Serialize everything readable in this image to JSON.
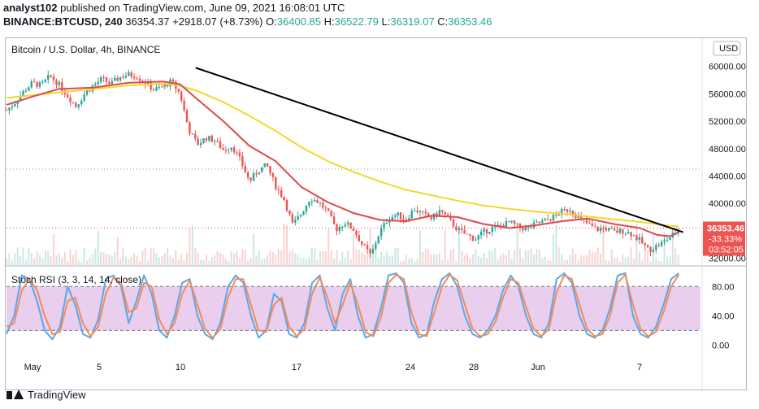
{
  "header": {
    "line1_user": "analyst102",
    "line1_rest": " published on TradingView.com, June 09, 2021 16:08:01 UTC",
    "symbol": "BINANCE:BTCUSD, 240",
    "last": "36354.37",
    "change": "+2918.07 (+8.73%)",
    "o_label": "O:",
    "o_value": "36400.85",
    "h_label": "H:",
    "h_value": "36522.79",
    "l_label": "L:",
    "l_value": "36319.07",
    "c_label": "C:",
    "c_value": "36353.46"
  },
  "colors": {
    "up": "#26a69a",
    "down": "#ef5350",
    "ema_fast": "#e04848",
    "ema_slow": "#f2d82c",
    "rsi_k": "#5ba7e8",
    "rsi_d": "#f28c5a",
    "rsi_band": "#e1bee7",
    "trendline": "#000000",
    "price_label_bg": "#ef5350"
  },
  "chart_data": {
    "type": "candlestick",
    "title": "Bitcoin / U.S. Dollar, 4h, BINANCE",
    "currency": "USD",
    "y_ticks": [
      "60000.00",
      "56000.00",
      "52000.00",
      "48000.00",
      "44000.00",
      "40000.00",
      "32000.00"
    ],
    "y_tick_values": [
      60000,
      56000,
      52000,
      48000,
      44000,
      40000,
      32000
    ],
    "ylim": [
      31000,
      64000
    ],
    "x_labels": [
      "May",
      "5",
      "10",
      "17",
      "24",
      "28",
      "Jun",
      "7"
    ],
    "last_price_label": "36353.46",
    "change_label": "-33.33%",
    "countdown_label": "03:52:05",
    "close_path": [
      [
        0,
        53600
      ],
      [
        10,
        54800
      ],
      [
        20,
        56400
      ],
      [
        30,
        57600
      ],
      [
        40,
        57200
      ],
      [
        50,
        58600
      ],
      [
        60,
        57400
      ],
      [
        70,
        55800
      ],
      [
        80,
        54200
      ],
      [
        90,
        56000
      ],
      [
        100,
        57200
      ],
      [
        110,
        58200
      ],
      [
        120,
        57400
      ],
      [
        130,
        58400
      ],
      [
        140,
        58800
      ],
      [
        150,
        58600
      ],
      [
        160,
        57600
      ],
      [
        170,
        56600
      ],
      [
        180,
        57000
      ],
      [
        190,
        57800
      ],
      [
        200,
        56000
      ],
      [
        210,
        50800
      ],
      [
        220,
        48600
      ],
      [
        230,
        49600
      ],
      [
        240,
        49200
      ],
      [
        250,
        47800
      ],
      [
        260,
        48400
      ],
      [
        270,
        46200
      ],
      [
        280,
        43200
      ],
      [
        290,
        44800
      ],
      [
        300,
        45600
      ],
      [
        310,
        42600
      ],
      [
        320,
        40600
      ],
      [
        330,
        36800
      ],
      [
        340,
        38600
      ],
      [
        350,
        40800
      ],
      [
        360,
        40200
      ],
      [
        370,
        38800
      ],
      [
        380,
        36200
      ],
      [
        390,
        37200
      ],
      [
        400,
        36200
      ],
      [
        410,
        34000
      ],
      [
        420,
        32400
      ],
      [
        430,
        35800
      ],
      [
        440,
        37800
      ],
      [
        450,
        38400
      ],
      [
        460,
        37600
      ],
      [
        470,
        39200
      ],
      [
        480,
        38400
      ],
      [
        490,
        37800
      ],
      [
        500,
        39000
      ],
      [
        510,
        37600
      ],
      [
        520,
        36200
      ],
      [
        530,
        35400
      ],
      [
        540,
        34800
      ],
      [
        550,
        35800
      ],
      [
        560,
        36400
      ],
      [
        570,
        36800
      ],
      [
        580,
        37200
      ],
      [
        590,
        36600
      ],
      [
        600,
        36200
      ],
      [
        610,
        37000
      ],
      [
        620,
        37400
      ],
      [
        630,
        38000
      ],
      [
        640,
        38800
      ],
      [
        650,
        39200
      ],
      [
        660,
        37800
      ],
      [
        670,
        37000
      ],
      [
        680,
        36200
      ],
      [
        690,
        36400
      ],
      [
        700,
        35800
      ],
      [
        710,
        36000
      ],
      [
        720,
        35600
      ],
      [
        730,
        34600
      ],
      [
        740,
        33200
      ],
      [
        750,
        33800
      ],
      [
        760,
        34600
      ],
      [
        770,
        35600
      ],
      [
        775,
        36350
      ]
    ],
    "ema_slow_path": [
      [
        0,
        55400
      ],
      [
        30,
        55800
      ],
      [
        60,
        56200
      ],
      [
        100,
        56700
      ],
      [
        140,
        57200
      ],
      [
        180,
        57500
      ],
      [
        200,
        57200
      ],
      [
        220,
        56400
      ],
      [
        250,
        54800
      ],
      [
        280,
        52800
      ],
      [
        310,
        50600
      ],
      [
        340,
        48200
      ],
      [
        370,
        46200
      ],
      [
        400,
        44600
      ],
      [
        430,
        43200
      ],
      [
        460,
        42000
      ],
      [
        490,
        41200
      ],
      [
        520,
        40400
      ],
      [
        550,
        39700
      ],
      [
        580,
        39200
      ],
      [
        610,
        38800
      ],
      [
        640,
        38500
      ],
      [
        670,
        38100
      ],
      [
        700,
        37700
      ],
      [
        730,
        37300
      ],
      [
        760,
        36800
      ],
      [
        775,
        36600
      ]
    ],
    "ema_fast_path": [
      [
        0,
        54400
      ],
      [
        30,
        55600
      ],
      [
        60,
        56700
      ],
      [
        100,
        56900
      ],
      [
        140,
        57600
      ],
      [
        180,
        57800
      ],
      [
        200,
        57400
      ],
      [
        220,
        55200
      ],
      [
        250,
        52000
      ],
      [
        280,
        48400
      ],
      [
        310,
        46200
      ],
      [
        340,
        42400
      ],
      [
        370,
        40200
      ],
      [
        400,
        38600
      ],
      [
        430,
        37600
      ],
      [
        460,
        37400
      ],
      [
        490,
        38200
      ],
      [
        520,
        38000
      ],
      [
        550,
        37000
      ],
      [
        580,
        36400
      ],
      [
        610,
        36800
      ],
      [
        640,
        37400
      ],
      [
        670,
        37800
      ],
      [
        700,
        37000
      ],
      [
        730,
        36400
      ],
      [
        750,
        35400
      ],
      [
        765,
        35200
      ],
      [
        775,
        35800
      ]
    ],
    "trendline": {
      "from": [
        218,
        59800
      ],
      "to": [
        780,
        35800
      ]
    },
    "dotted_levels": [
      45000,
      36400
    ],
    "rsi": {
      "label": "Stoch RSI (3, 3, 14, 14, close)",
      "ylim": [
        -15,
        108
      ],
      "ticks": [
        "80.00",
        "40.00",
        "0.00"
      ],
      "tick_values": [
        80,
        40,
        0
      ],
      "band": [
        20,
        80
      ],
      "k": [
        15,
        40,
        95,
        90,
        60,
        20,
        8,
        25,
        80,
        55,
        15,
        10,
        35,
        90,
        95,
        80,
        30,
        60,
        95,
        70,
        20,
        10,
        40,
        85,
        90,
        40,
        15,
        8,
        30,
        80,
        95,
        85,
        40,
        10,
        20,
        70,
        60,
        15,
        10,
        30,
        85,
        95,
        50,
        20,
        70,
        90,
        40,
        10,
        15,
        50,
        95,
        98,
        85,
        30,
        10,
        15,
        60,
        90,
        98,
        80,
        40,
        15,
        10,
        20,
        40,
        75,
        95,
        80,
        40,
        15,
        10,
        30,
        90,
        98,
        85,
        40,
        15,
        10,
        20,
        50,
        95,
        98,
        40,
        15,
        10,
        25,
        55,
        90,
        98
      ],
      "d": [
        25,
        30,
        75,
        90,
        75,
        40,
        15,
        18,
        60,
        65,
        30,
        12,
        25,
        70,
        92,
        85,
        45,
        50,
        85,
        80,
        35,
        15,
        30,
        70,
        88,
        55,
        22,
        10,
        22,
        65,
        90,
        90,
        55,
        20,
        18,
        55,
        65,
        25,
        12,
        22,
        70,
        92,
        65,
        30,
        55,
        85,
        55,
        18,
        12,
        38,
        85,
        96,
        90,
        45,
        15,
        12,
        45,
        80,
        96,
        88,
        55,
        22,
        12,
        15,
        32,
        65,
        90,
        85,
        52,
        22,
        12,
        22,
        72,
        95,
        90,
        55,
        22,
        12,
        15,
        40,
        85,
        96,
        55,
        22,
        12,
        18,
        45,
        80,
        96
      ]
    }
  },
  "footer": {
    "brand": "TradingView"
  }
}
